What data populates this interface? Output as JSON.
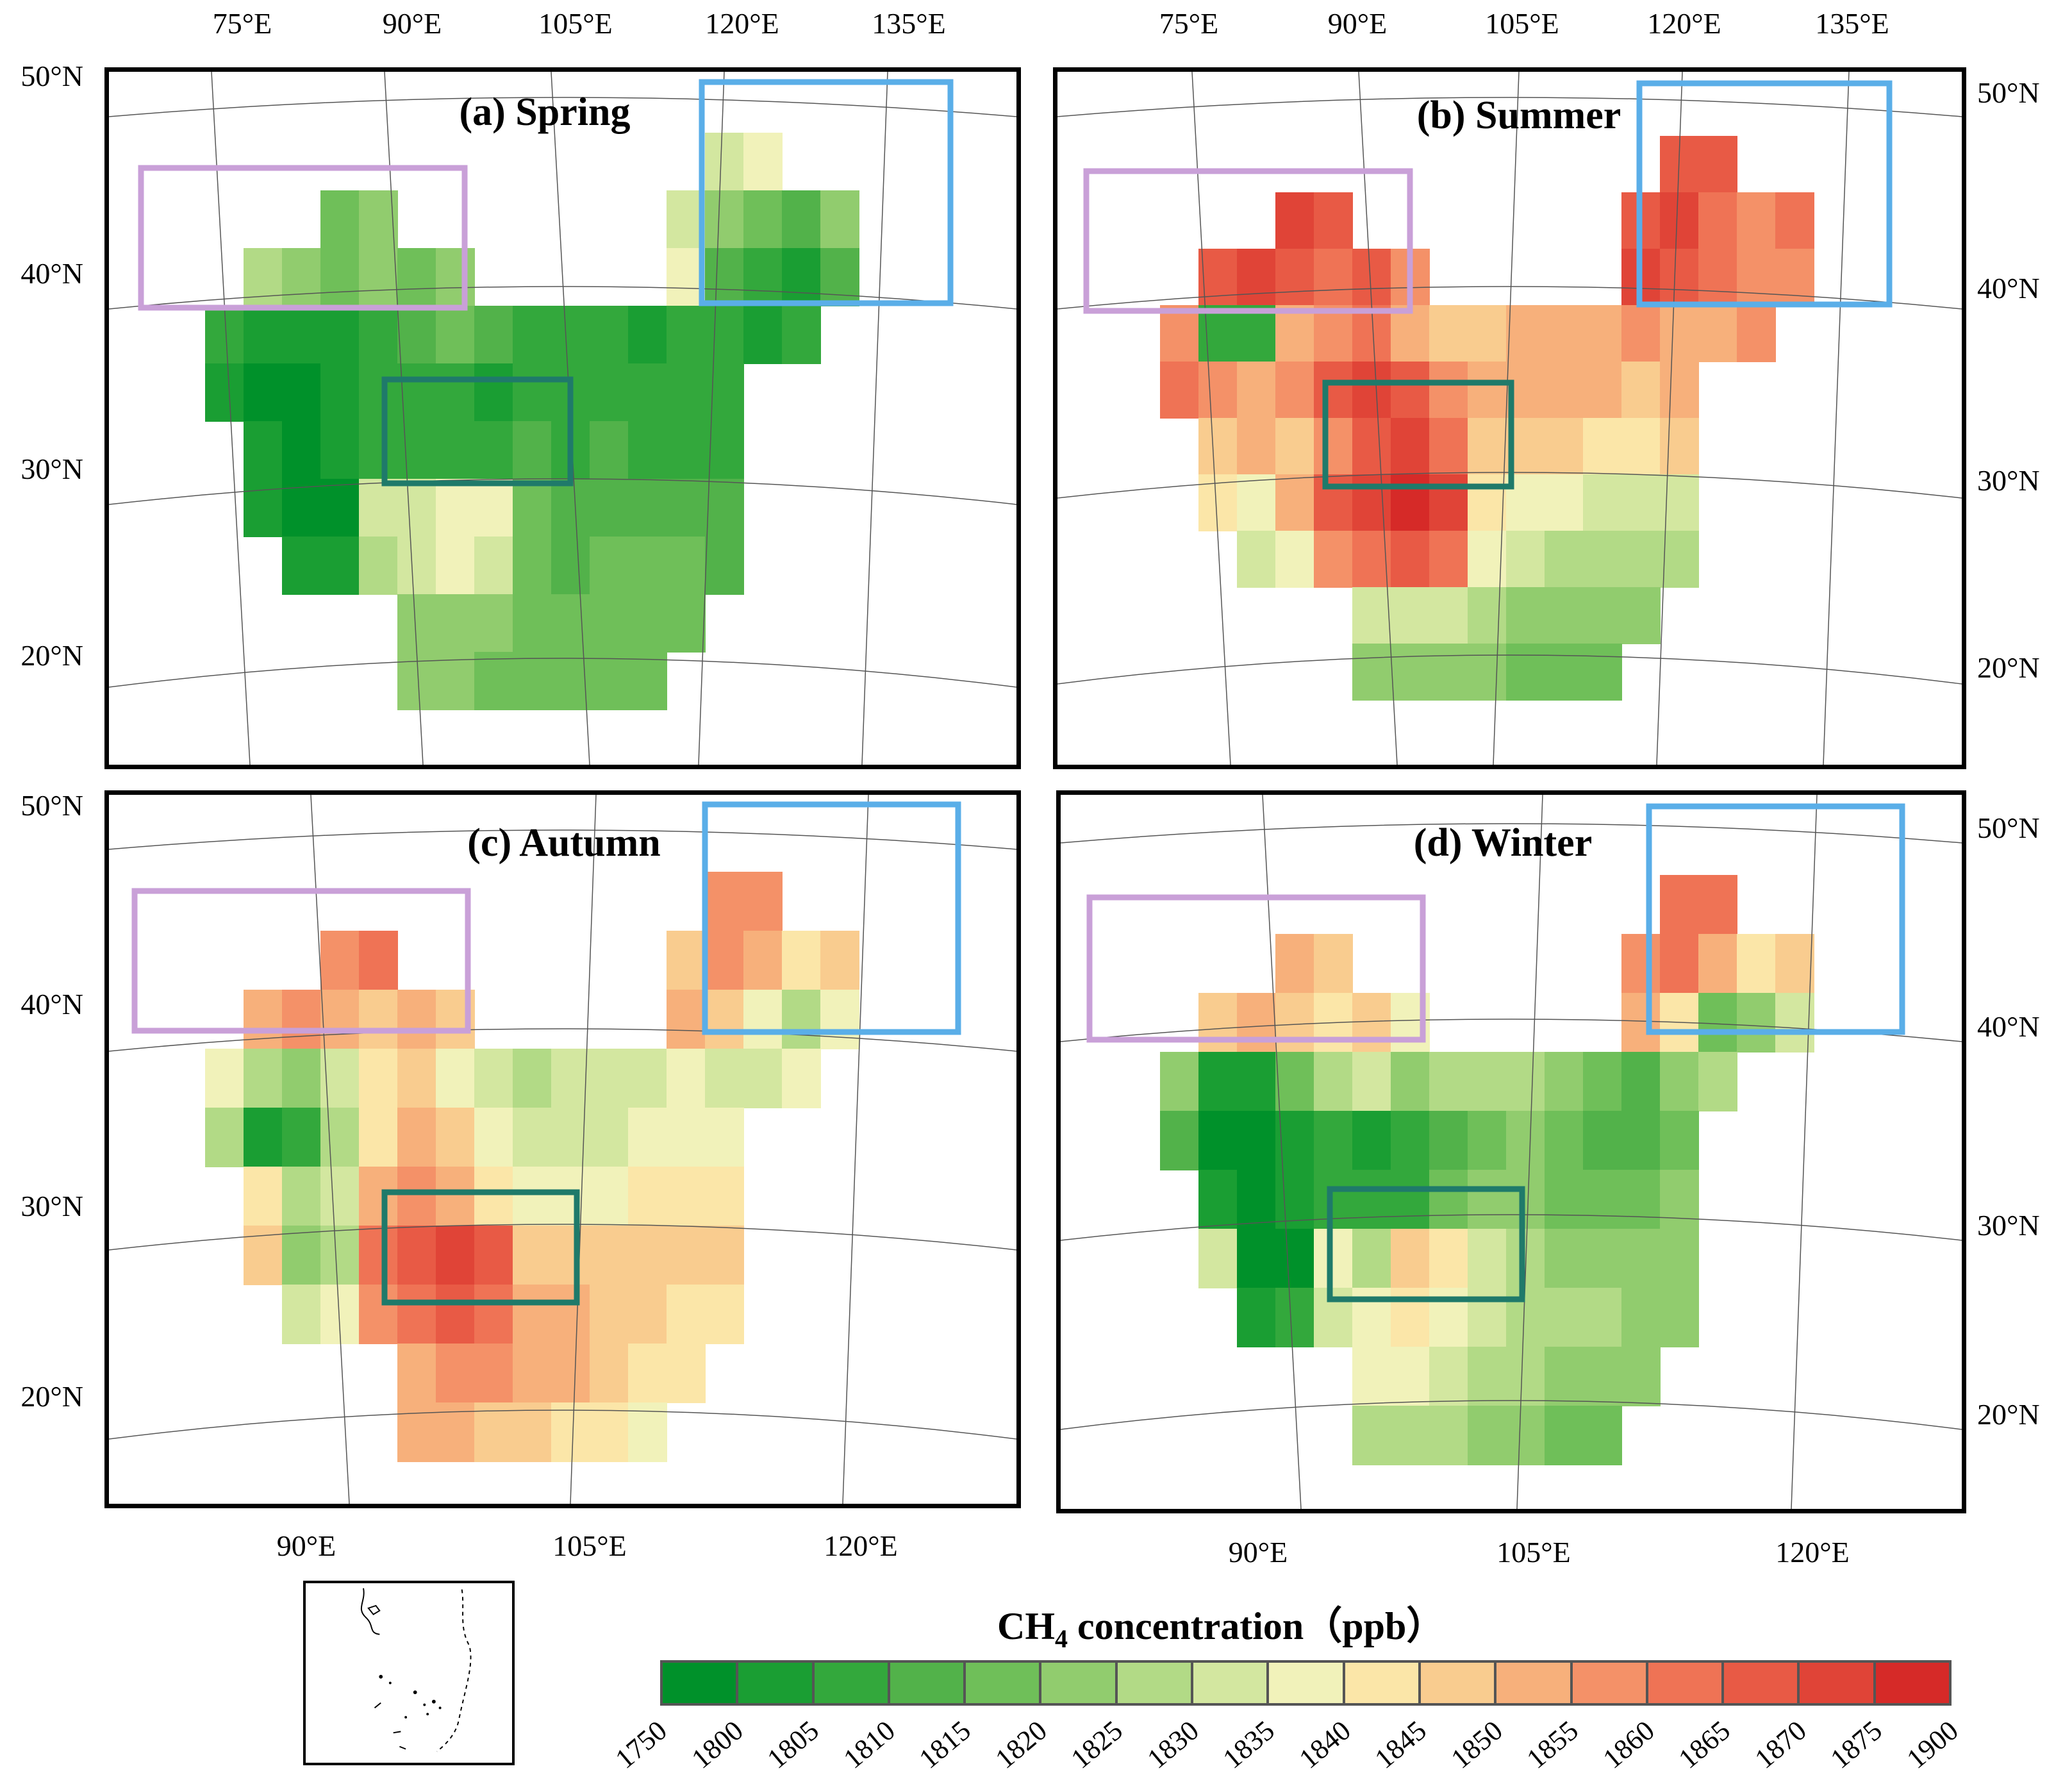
{
  "figure": {
    "panels": [
      {
        "id": "a",
        "title": "(a) Spring",
        "top_lon_labels": [
          "75°E",
          "90°E",
          "105°E",
          "120°E",
          "135°E"
        ],
        "bottom_lon_labels": [],
        "left_lat_labels": [
          "50°N",
          "40°N",
          "30°N",
          "20°N"
        ],
        "right_lat_labels": [],
        "grid": [
          [
            0,
            0,
            0,
            0,
            0,
            0,
            0,
            0,
            0,
            0,
            0,
            0,
            0,
            0,
            8,
            9,
            0,
            0,
            0
          ],
          [
            0,
            0,
            0,
            0,
            5,
            6,
            0,
            0,
            0,
            0,
            0,
            0,
            0,
            8,
            6,
            5,
            4,
            6,
            0
          ],
          [
            0,
            0,
            7,
            6,
            5,
            6,
            5,
            6,
            0,
            0,
            0,
            0,
            0,
            9,
            4,
            3,
            2,
            4,
            0
          ],
          [
            0,
            3,
            2,
            2,
            2,
            3,
            4,
            5,
            4,
            3,
            3,
            3,
            2,
            3,
            3,
            2,
            3,
            0,
            0
          ],
          [
            0,
            2,
            1,
            1,
            2,
            3,
            3,
            3,
            2,
            3,
            3,
            3,
            3,
            3,
            3,
            0,
            0,
            0,
            0
          ],
          [
            0,
            0,
            2,
            1,
            2,
            3,
            3,
            3,
            3,
            4,
            3,
            4,
            3,
            3,
            3,
            0,
            0,
            0,
            0
          ],
          [
            0,
            0,
            2,
            1,
            1,
            8,
            8,
            9,
            9,
            5,
            4,
            4,
            4,
            4,
            4,
            0,
            0,
            0,
            0
          ],
          [
            0,
            0,
            0,
            2,
            2,
            7,
            8,
            9,
            8,
            5,
            4,
            5,
            5,
            5,
            4,
            0,
            0,
            0,
            0
          ],
          [
            0,
            0,
            0,
            0,
            0,
            0,
            6,
            6,
            6,
            5,
            5,
            5,
            5,
            5,
            0,
            0,
            0,
            0,
            0
          ],
          [
            0,
            0,
            0,
            0,
            0,
            0,
            6,
            6,
            5,
            5,
            5,
            5,
            5,
            0,
            0,
            0,
            0,
            0,
            0
          ]
        ]
      },
      {
        "id": "b",
        "title": "(b) Summer",
        "top_lon_labels": [
          "75°E",
          "90°E",
          "105°E",
          "120°E",
          "135°E"
        ],
        "bottom_lon_labels": [],
        "left_lat_labels": [],
        "right_lat_labels": [
          "50°N",
          "40°N",
          "30°N",
          "20°N"
        ],
        "grid": [
          [
            0,
            0,
            0,
            0,
            0,
            0,
            0,
            0,
            0,
            0,
            0,
            0,
            0,
            0,
            15,
            15,
            0,
            0,
            0
          ],
          [
            0,
            0,
            0,
            0,
            16,
            15,
            0,
            0,
            0,
            0,
            0,
            0,
            0,
            15,
            16,
            14,
            13,
            14,
            0
          ],
          [
            0,
            0,
            15,
            16,
            15,
            14,
            15,
            13,
            0,
            0,
            0,
            0,
            0,
            16,
            15,
            14,
            13,
            13,
            0
          ],
          [
            0,
            13,
            3,
            3,
            12,
            13,
            14,
            12,
            11,
            11,
            12,
            12,
            12,
            13,
            12,
            12,
            13,
            0,
            0
          ],
          [
            0,
            14,
            13,
            12,
            13,
            15,
            16,
            15,
            13,
            12,
            12,
            12,
            12,
            11,
            12,
            0,
            0,
            0,
            0
          ],
          [
            0,
            0,
            11,
            12,
            11,
            13,
            15,
            16,
            14,
            11,
            11,
            11,
            10,
            10,
            11,
            0,
            0,
            0,
            0
          ],
          [
            0,
            0,
            10,
            9,
            12,
            15,
            16,
            17,
            16,
            10,
            9,
            9,
            8,
            8,
            8,
            0,
            0,
            0,
            0
          ],
          [
            0,
            0,
            0,
            8,
            9,
            13,
            14,
            15,
            14,
            9,
            8,
            7,
            7,
            7,
            7,
            0,
            0,
            0,
            0
          ],
          [
            0,
            0,
            0,
            0,
            0,
            0,
            8,
            8,
            8,
            7,
            6,
            6,
            6,
            6,
            0,
            0,
            0,
            0,
            0
          ],
          [
            0,
            0,
            0,
            0,
            0,
            0,
            6,
            6,
            6,
            6,
            5,
            5,
            5,
            0,
            0,
            0,
            0,
            0,
            0
          ]
        ]
      },
      {
        "id": "c",
        "title": "(c) Autumn",
        "top_lon_labels": [],
        "bottom_lon_labels": [
          "90°E",
          "105°E",
          "120°E"
        ],
        "left_lat_labels": [
          "50°N",
          "40°N",
          "30°N",
          "20°N"
        ],
        "right_lat_labels": [],
        "grid": [
          [
            0,
            0,
            0,
            0,
            0,
            0,
            0,
            0,
            0,
            0,
            0,
            0,
            0,
            0,
            13,
            13,
            0,
            0,
            0
          ],
          [
            0,
            0,
            0,
            0,
            13,
            14,
            0,
            0,
            0,
            0,
            0,
            0,
            0,
            11,
            13,
            12,
            10,
            11,
            0
          ],
          [
            0,
            0,
            12,
            13,
            12,
            11,
            12,
            11,
            0,
            0,
            0,
            0,
            0,
            12,
            11,
            9,
            7,
            9,
            0
          ],
          [
            0,
            9,
            7,
            6,
            8,
            10,
            11,
            9,
            8,
            7,
            8,
            8,
            8,
            9,
            8,
            8,
            9,
            0,
            0
          ],
          [
            0,
            7,
            2,
            3,
            7,
            10,
            12,
            11,
            9,
            8,
            8,
            8,
            9,
            9,
            9,
            0,
            0,
            0,
            0
          ],
          [
            0,
            0,
            10,
            7,
            8,
            12,
            13,
            12,
            10,
            9,
            9,
            9,
            10,
            10,
            10,
            0,
            0,
            0,
            0
          ],
          [
            0,
            0,
            11,
            6,
            7,
            14,
            15,
            16,
            15,
            11,
            11,
            11,
            11,
            11,
            11,
            0,
            0,
            0,
            0
          ],
          [
            0,
            0,
            0,
            8,
            9,
            13,
            14,
            15,
            14,
            12,
            12,
            11,
            11,
            10,
            10,
            0,
            0,
            0,
            0
          ],
          [
            0,
            0,
            0,
            0,
            0,
            0,
            12,
            13,
            13,
            12,
            12,
            11,
            10,
            10,
            0,
            0,
            0,
            0,
            0
          ],
          [
            0,
            0,
            0,
            0,
            0,
            0,
            12,
            12,
            11,
            11,
            10,
            10,
            9,
            0,
            0,
            0,
            0,
            0,
            0
          ]
        ]
      },
      {
        "id": "d",
        "title": "(d) Winter",
        "top_lon_labels": [],
        "bottom_lon_labels": [
          "90°E",
          "105°E",
          "120°E"
        ],
        "left_lat_labels": [],
        "right_lat_labels": [
          "50°N",
          "40°N",
          "30°N",
          "20°N"
        ],
        "grid": [
          [
            0,
            0,
            0,
            0,
            0,
            0,
            0,
            0,
            0,
            0,
            0,
            0,
            0,
            0,
            14,
            14,
            0,
            0,
            0
          ],
          [
            0,
            0,
            0,
            0,
            12,
            11,
            0,
            0,
            0,
            0,
            0,
            0,
            0,
            13,
            14,
            12,
            10,
            11,
            0
          ],
          [
            0,
            0,
            11,
            12,
            11,
            10,
            11,
            9,
            0,
            0,
            0,
            0,
            0,
            12,
            10,
            5,
            6,
            8,
            0
          ],
          [
            0,
            6,
            2,
            2,
            5,
            7,
            8,
            6,
            7,
            7,
            7,
            6,
            5,
            4,
            6,
            7,
            0,
            0,
            0
          ],
          [
            0,
            4,
            1,
            1,
            2,
            3,
            2,
            3,
            4,
            5,
            6,
            5,
            4,
            4,
            5,
            0,
            0,
            0,
            0
          ],
          [
            0,
            0,
            2,
            1,
            2,
            3,
            3,
            3,
            5,
            6,
            6,
            5,
            5,
            5,
            6,
            0,
            0,
            0,
            0
          ],
          [
            0,
            0,
            8,
            1,
            1,
            9,
            7,
            11,
            10,
            8,
            7,
            6,
            6,
            6,
            6,
            0,
            0,
            0,
            0
          ],
          [
            0,
            0,
            0,
            2,
            3,
            8,
            9,
            10,
            9,
            8,
            7,
            7,
            7,
            6,
            6,
            0,
            0,
            0,
            0
          ],
          [
            0,
            0,
            0,
            0,
            0,
            0,
            9,
            9,
            8,
            7,
            7,
            6,
            6,
            6,
            0,
            0,
            0,
            0,
            0
          ],
          [
            0,
            0,
            0,
            0,
            0,
            0,
            7,
            7,
            7,
            6,
            6,
            5,
            5,
            0,
            0,
            0,
            0,
            0,
            0
          ]
        ]
      }
    ],
    "region_colors": {
      "northwest": "#c9a0d8",
      "northeast": "#5aaee8",
      "southwest": "#1f7a6a"
    }
  },
  "colorbar": {
    "title_main": "CH",
    "title_sub": "4",
    "title_rest": " concentration（ppb）",
    "labels": [
      "1750",
      "1800",
      "1805",
      "1810",
      "1815",
      "1820",
      "1825",
      "1830",
      "1835",
      "1840",
      "1845",
      "1850",
      "1855",
      "1860",
      "1865",
      "1870",
      "1875",
      "1900"
    ],
    "colors": [
      "#00912a",
      "#1a9e33",
      "#33a83c",
      "#52b24a",
      "#6fbf59",
      "#91cc6e",
      "#b2da86",
      "#d3e7a0",
      "#f1f2ba",
      "#fbe6a8",
      "#f9cc8f",
      "#f7b07b",
      "#f49168",
      "#ef7355",
      "#e85a45",
      "#e04437",
      "#d62a28"
    ]
  }
}
